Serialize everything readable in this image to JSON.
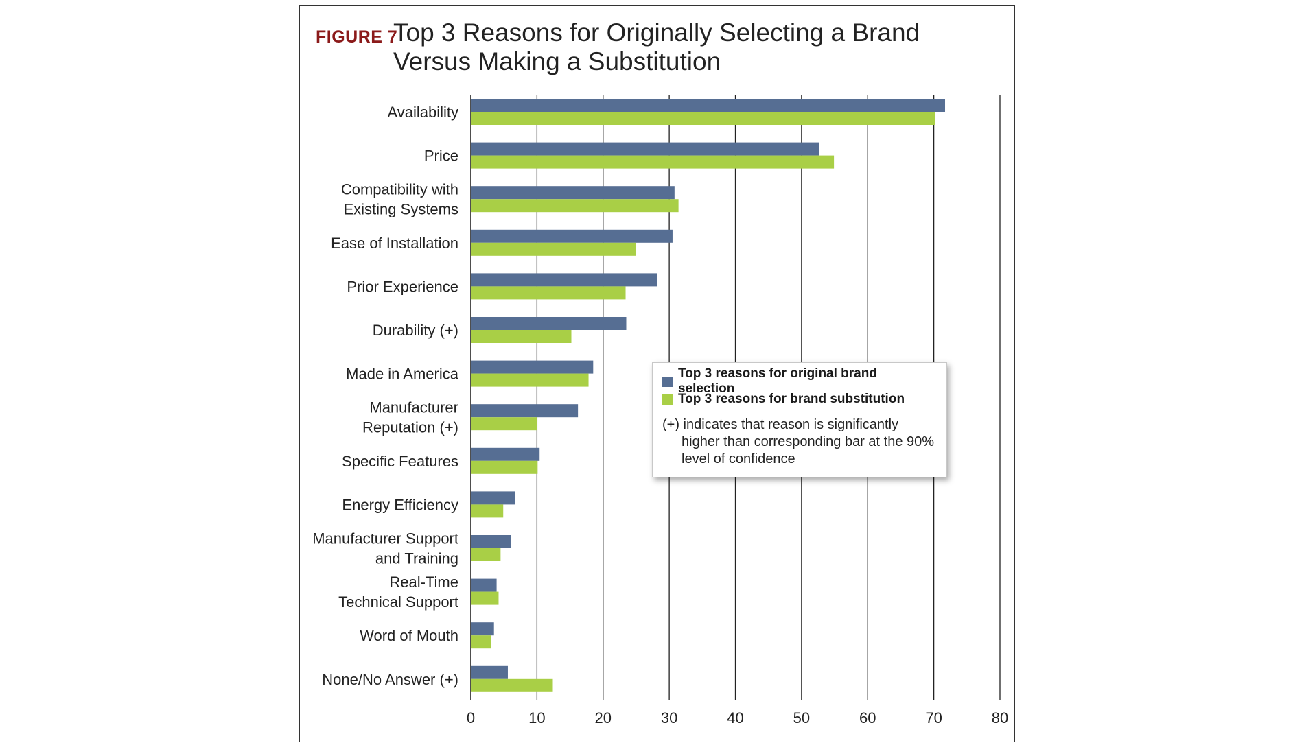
{
  "figure": {
    "label": "FIGURE 7",
    "title": "Top 3 Reasons for Originally Selecting a Brand Versus Making a Substitution"
  },
  "colors": {
    "label_red": "#8b1a1a",
    "original": "#566e93",
    "substitution": "#a9cf46",
    "axis": "#222222",
    "text": "#222222"
  },
  "legend": {
    "items": [
      {
        "label": "Top 3 reasons for original brand selection",
        "color": "#566e93"
      },
      {
        "label": "Top 3 reasons for brand substitution",
        "color": "#a9cf46"
      }
    ],
    "note": "(+) indicates that reason is significantly higher than corresponding bar at the 90% level of confidence"
  },
  "chart_data": {
    "type": "bar",
    "orientation": "horizontal",
    "categories": [
      [
        "Availability"
      ],
      [
        "Price"
      ],
      [
        "Compatibility with",
        "Existing Systems"
      ],
      [
        "Ease of Installation"
      ],
      [
        "Prior Experience"
      ],
      [
        "Durability (+)"
      ],
      [
        "Made in America"
      ],
      [
        "Manufacturer",
        "Reputation (+)"
      ],
      [
        "Specific Features"
      ],
      [
        "Energy Efficiency"
      ],
      [
        "Manufacturer Support",
        "and Training"
      ],
      [
        "Real-Time",
        "Technical Support"
      ],
      [
        "Word of Mouth"
      ],
      [
        "None/No Answer (+)"
      ]
    ],
    "series": [
      {
        "name": "Top 3 reasons for original brand selection",
        "values": [
          71.7,
          52.7,
          30.8,
          30.5,
          28.2,
          23.5,
          18.5,
          16.2,
          10.4,
          6.7,
          6.1,
          3.9,
          3.5,
          5.6
        ]
      },
      {
        "name": "Top 3 reasons for brand substitution",
        "values": [
          70.2,
          54.9,
          31.4,
          25.0,
          23.4,
          15.2,
          17.8,
          10.0,
          10.1,
          4.9,
          4.5,
          4.2,
          3.1,
          12.4
        ]
      }
    ],
    "xlim": [
      0,
      80
    ],
    "xticks": [
      "0",
      "10",
      "20",
      "30",
      "40",
      "50",
      "60",
      "70",
      "80"
    ],
    "grid": "vertical",
    "legend_position": "center-right"
  }
}
